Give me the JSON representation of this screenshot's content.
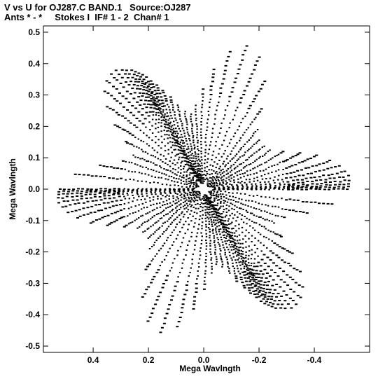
{
  "header": {
    "line1": "V vs U for OJ287.C BAND.1   Source:OJ287",
    "line2": "Ants * - *     Stokes I  IF# 1 - 2  Chan# 1"
  },
  "chart_data": {
    "type": "scatter",
    "title": "V vs U for OJ287.C BAND.1   Source:OJ287",
    "subtitle": "Ants * - *     Stokes I  IF# 1 - 2  Chan# 1",
    "xlabel": "Mega Wavlngth",
    "ylabel": "Mega Wavlngth",
    "xlim": [
      0.58,
      -0.6
    ],
    "ylim": [
      -0.52,
      0.52
    ],
    "x_reversed": true,
    "x_ticks": [
      0.4,
      0.2,
      0.0,
      -0.2,
      -0.4
    ],
    "x_tick_labels": [
      "0.4",
      "0.2",
      "0.0",
      "-0.2",
      "-0.4"
    ],
    "y_ticks": [
      0.5,
      0.4,
      0.3,
      0.2,
      0.1,
      0.0,
      -0.1,
      -0.2,
      -0.3,
      -0.4,
      -0.5
    ],
    "y_tick_labels": [
      "0.5",
      "0.4",
      "0.3",
      "0.2",
      "0.1",
      "0.0",
      "-0.1",
      "-0.2",
      "-0.3",
      "-0.4",
      "-0.5"
    ],
    "grid": false,
    "marker": "small filled dash",
    "color": "#000000",
    "pattern": "six-armed uv-coverage star; each track mirrored through origin",
    "arms": [
      {
        "end_u": 0.36,
        "end_v": 0.44
      },
      {
        "end_u": -0.16,
        "end_v": 0.49
      },
      {
        "end_u": -0.55,
        "end_v": 0.03
      },
      {
        "end_u": -0.36,
        "end_v": -0.44
      },
      {
        "end_u": 0.16,
        "end_v": -0.49
      },
      {
        "end_u": 0.55,
        "end_v": -0.03
      }
    ],
    "tracks": 30,
    "points_per_track": 48
  }
}
